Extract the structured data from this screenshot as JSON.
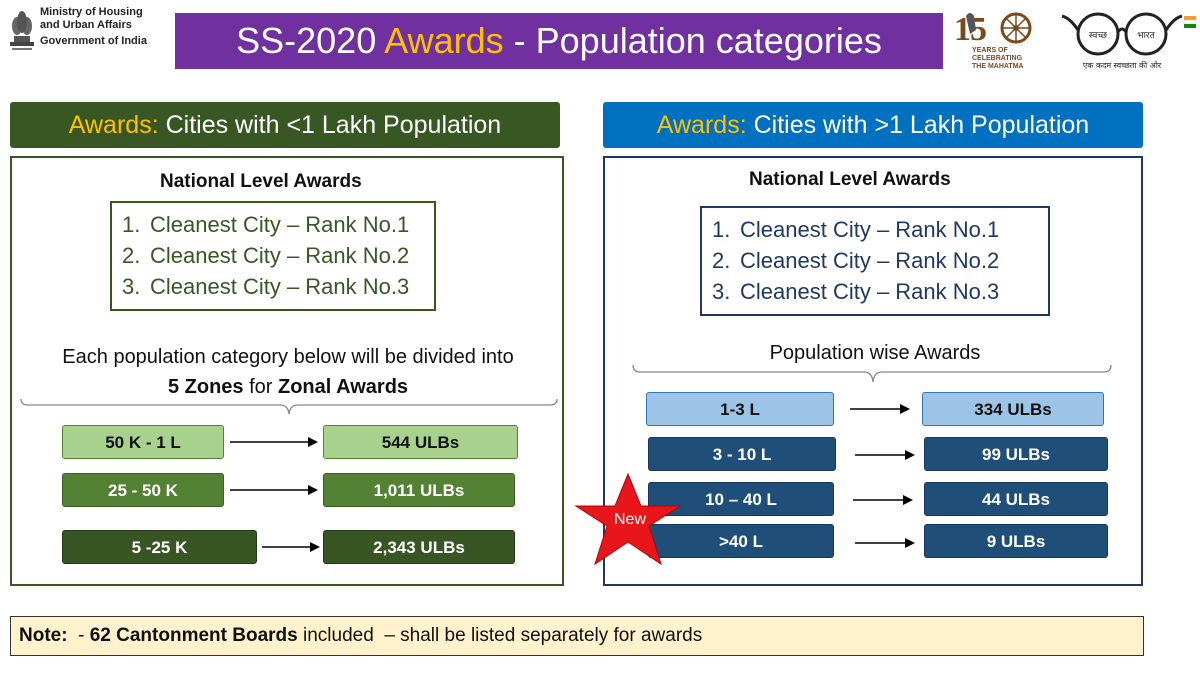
{
  "header": {
    "ministry_line1": "Ministry of Housing",
    "ministry_line2": "and Urban Affairs",
    "government": "Government of India",
    "title_prefix": "SS-2020 ",
    "title_accent": "Awards",
    "title_suffix": " - Population categories",
    "gandhi_years": "YEARS OF",
    "gandhi_celebrating": "CELEBRATING",
    "gandhi_mahatma": "THE MAHATMA",
    "swachh_left": "स्वच्छ",
    "swachh_right": "भारत",
    "swachh_tagline": "एक कदम स्वच्छता की ओर"
  },
  "left_panel": {
    "head_accent": "Awards:",
    "head_text": " Cities with <1 Lakh Population",
    "national_title": "National Level Awards",
    "ranks": [
      {
        "num": "1.",
        "text": "Cleanest City – Rank No.1"
      },
      {
        "num": "2.",
        "text": "Cleanest City – Rank No.2"
      },
      {
        "num": "3.",
        "text": "Cleanest City – Rank No.3"
      }
    ],
    "divide_line1": "Each population category below will be divided into",
    "divide_bold1": "5 Zones",
    "divide_mid": " for ",
    "divide_bold2": "Zonal Awards",
    "categories": [
      {
        "range": "50 K - 1 L",
        "ulbs": "544 ULBs"
      },
      {
        "range": "25 - 50 K",
        "ulbs": "1,011 ULBs"
      },
      {
        "range": "5 -25 K",
        "ulbs": "2,343 ULBs"
      }
    ]
  },
  "right_panel": {
    "head_accent": "Awards:",
    "head_text": " Cities with >1 Lakh Population",
    "national_title": "National Level Awards",
    "ranks": [
      {
        "num": "1.",
        "text": "Cleanest City – Rank No.1"
      },
      {
        "num": "2.",
        "text": "Cleanest City – Rank No.2"
      },
      {
        "num": "3.",
        "text": "Cleanest City – Rank No.3"
      }
    ],
    "popwise": "Population wise Awards",
    "categories": [
      {
        "range": "1-3 L",
        "ulbs": "334 ULBs"
      },
      {
        "range": "3 - 10 L",
        "ulbs": "99 ULBs"
      },
      {
        "range": "10 – 40 L",
        "ulbs": "44 ULBs"
      },
      {
        "range": ">40 L",
        "ulbs": "9 ULBs"
      }
    ],
    "new_badge": "New"
  },
  "note": {
    "label": "Note:",
    "dash": "  - ",
    "bold": "62 Cantonment Boards",
    "rest": " included  – shall be listed separately for awards"
  },
  "colors": {
    "banner": "#7030a0",
    "accent": "#ffc000",
    "left_head": "#385723",
    "right_head": "#0070c0",
    "note_bg": "#fff2cc",
    "star": "#e8161b"
  }
}
